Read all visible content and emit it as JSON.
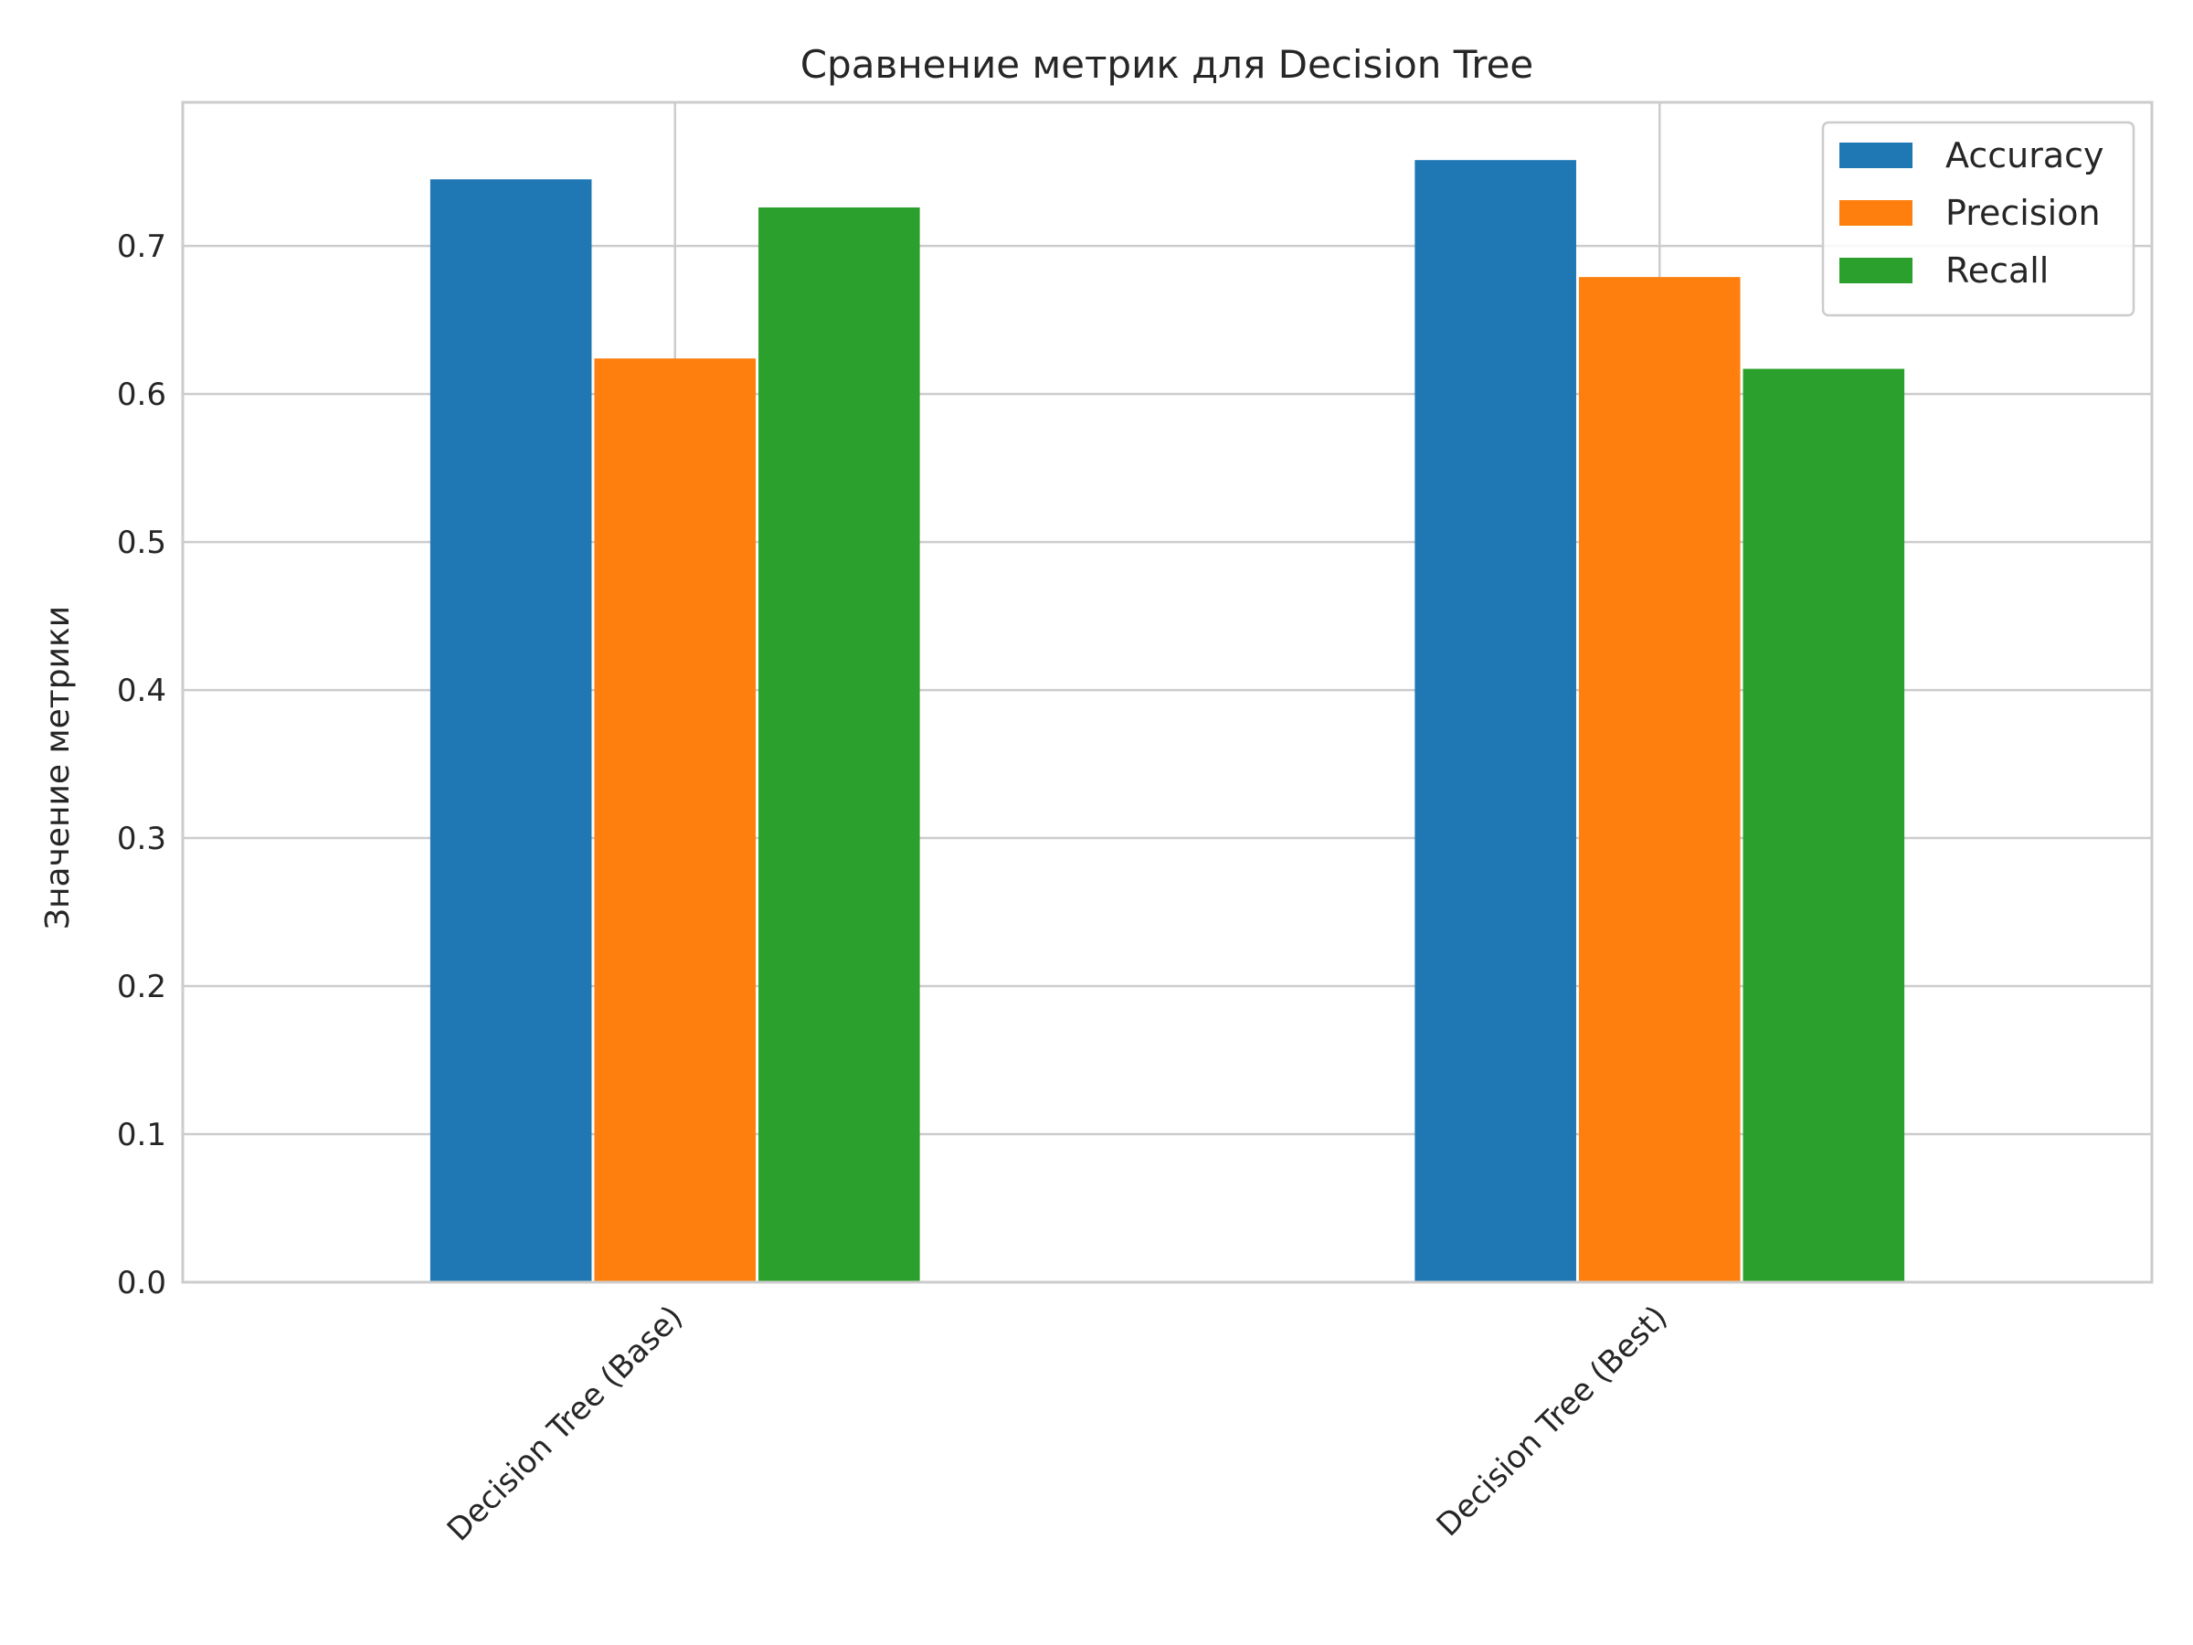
{
  "chart_data": {
    "type": "bar",
    "title": "Сравнение метрик для Decision Tree",
    "xlabel": "",
    "ylabel": "Значение метрики",
    "categories": [
      "Decision Tree (Base)",
      "Decision Tree (Best)"
    ],
    "series": [
      {
        "name": "Accuracy",
        "color": "#1f77b4",
        "values": [
          0.745,
          0.758
        ]
      },
      {
        "name": "Precision",
        "color": "#ff7f0e",
        "values": [
          0.624,
          0.679
        ]
      },
      {
        "name": "Recall",
        "color": "#2ca02c",
        "values": [
          0.726,
          0.617
        ]
      }
    ],
    "ylim": [
      0,
      0.797
    ],
    "yticks": [
      0.0,
      0.1,
      0.2,
      0.3,
      0.4,
      0.5,
      0.6,
      0.7
    ],
    "ytick_labels": [
      "0.0",
      "0.1",
      "0.2",
      "0.3",
      "0.4",
      "0.5",
      "0.6",
      "0.7"
    ],
    "grid": true,
    "legend": "top-right"
  }
}
